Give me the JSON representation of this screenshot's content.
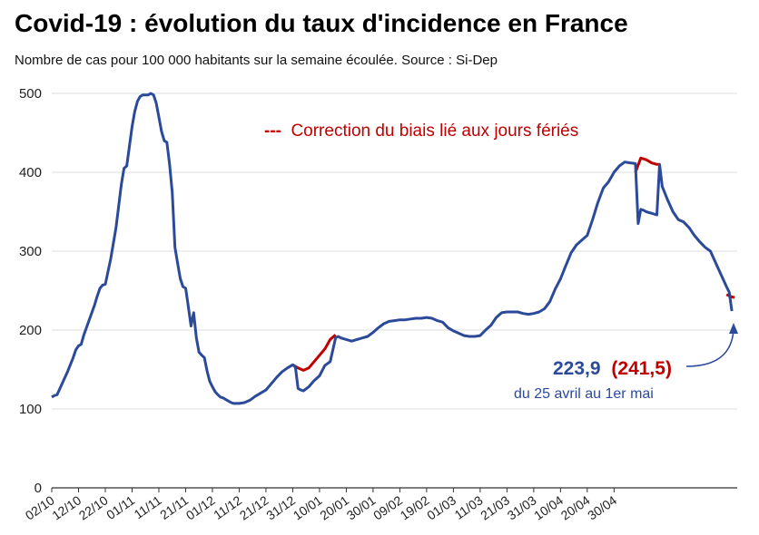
{
  "chart_data": {
    "type": "line",
    "title": "Covid-19 : évolution du taux d'incidence en France",
    "subtitle": "Nombre de cas pour 100 000 habitants sur la semaine écoulée. Source : Si-Dep",
    "ylim": [
      0,
      500
    ],
    "yticks": [
      0,
      100,
      200,
      300,
      400,
      500
    ],
    "grid": true,
    "x_tick_labels": [
      "02/10",
      "12/10",
      "22/10",
      "01/11",
      "11/11",
      "21/11",
      "01/12",
      "11/12",
      "21/12",
      "31/12",
      "10/01",
      "20/01",
      "30/01",
      "09/02",
      "19/02",
      "01/03",
      "11/03",
      "21/03",
      "31/03",
      "10/04",
      "20/04",
      "30/04"
    ],
    "x_unit": "days since 02/10",
    "series": [
      {
        "name": "Taux d'incidence",
        "color": "#2b4a9a",
        "points": [
          [
            0,
            115
          ],
          [
            1,
            117
          ],
          [
            2,
            118
          ],
          [
            4,
            133
          ],
          [
            6,
            148
          ],
          [
            8,
            165
          ],
          [
            9,
            175
          ],
          [
            10,
            180
          ],
          [
            11,
            182
          ],
          [
            12,
            194
          ],
          [
            14,
            213
          ],
          [
            16,
            232
          ],
          [
            17,
            243
          ],
          [
            18,
            253
          ],
          [
            19,
            257
          ],
          [
            20,
            258
          ],
          [
            22,
            290
          ],
          [
            24,
            330
          ],
          [
            26,
            385
          ],
          [
            27,
            405
          ],
          [
            28,
            408
          ],
          [
            30,
            458
          ],
          [
            31,
            477
          ],
          [
            32,
            490
          ],
          [
            33,
            496
          ],
          [
            34,
            498
          ],
          [
            35,
            498
          ],
          [
            36,
            498
          ],
          [
            37,
            500
          ],
          [
            38,
            498
          ],
          [
            39,
            488
          ],
          [
            40,
            470
          ],
          [
            41,
            452
          ],
          [
            42,
            440
          ],
          [
            43,
            438
          ],
          [
            44,
            410
          ],
          [
            45,
            375
          ],
          [
            46,
            305
          ],
          [
            47,
            285
          ],
          [
            48,
            265
          ],
          [
            49,
            255
          ],
          [
            50,
            253
          ],
          [
            51,
            230
          ],
          [
            52,
            205
          ],
          [
            53,
            222
          ],
          [
            54,
            190
          ],
          [
            55,
            172
          ],
          [
            56,
            168
          ],
          [
            57,
            165
          ],
          [
            58,
            148
          ],
          [
            59,
            135
          ],
          [
            60,
            128
          ],
          [
            61,
            122
          ],
          [
            62,
            118
          ],
          [
            63,
            115
          ],
          [
            64,
            114
          ],
          [
            65,
            112
          ],
          [
            66,
            110
          ],
          [
            67,
            108
          ],
          [
            68,
            107
          ],
          [
            70,
            107
          ],
          [
            72,
            108
          ],
          [
            74,
            111
          ],
          [
            76,
            116
          ],
          [
            78,
            120
          ],
          [
            80,
            124
          ],
          [
            82,
            132
          ],
          [
            84,
            140
          ],
          [
            86,
            147
          ],
          [
            88,
            152
          ],
          [
            90,
            156
          ],
          [
            91,
            153
          ],
          [
            92,
            126
          ],
          [
            93,
            124
          ],
          [
            94,
            123
          ],
          [
            96,
            128
          ],
          [
            98,
            136
          ],
          [
            100,
            142
          ],
          [
            102,
            155
          ],
          [
            104,
            160
          ],
          [
            106,
            190
          ],
          [
            107,
            192
          ],
          [
            108,
            190
          ],
          [
            110,
            188
          ],
          [
            112,
            186
          ],
          [
            114,
            188
          ],
          [
            116,
            190
          ],
          [
            118,
            192
          ],
          [
            120,
            197
          ],
          [
            122,
            203
          ],
          [
            124,
            208
          ],
          [
            126,
            211
          ],
          [
            128,
            212
          ],
          [
            130,
            213
          ],
          [
            132,
            213
          ],
          [
            134,
            214
          ],
          [
            136,
            215
          ],
          [
            138,
            215
          ],
          [
            140,
            216
          ],
          [
            142,
            215
          ],
          [
            144,
            212
          ],
          [
            146,
            210
          ],
          [
            148,
            203
          ],
          [
            150,
            199
          ],
          [
            152,
            196
          ],
          [
            154,
            193
          ],
          [
            156,
            192
          ],
          [
            158,
            192
          ],
          [
            160,
            193
          ],
          [
            162,
            200
          ],
          [
            164,
            206
          ],
          [
            166,
            216
          ],
          [
            168,
            222
          ],
          [
            170,
            223
          ],
          [
            172,
            223
          ],
          [
            174,
            223
          ],
          [
            176,
            221
          ],
          [
            178,
            220
          ],
          [
            180,
            221
          ],
          [
            182,
            223
          ],
          [
            184,
            227
          ],
          [
            186,
            236
          ],
          [
            188,
            252
          ],
          [
            190,
            265
          ],
          [
            192,
            282
          ],
          [
            194,
            298
          ],
          [
            196,
            308
          ],
          [
            198,
            314
          ],
          [
            200,
            320
          ],
          [
            202,
            340
          ],
          [
            204,
            362
          ],
          [
            206,
            380
          ],
          [
            208,
            388
          ],
          [
            210,
            400
          ],
          [
            212,
            408
          ],
          [
            214,
            413
          ],
          [
            216,
            412
          ],
          [
            218,
            411
          ],
          [
            219,
            335
          ],
          [
            220,
            353
          ],
          [
            221,
            352
          ],
          [
            222,
            350
          ],
          [
            224,
            348
          ],
          [
            226,
            346
          ],
          [
            227,
            410
          ],
          [
            228,
            382
          ],
          [
            230,
            365
          ],
          [
            232,
            350
          ],
          [
            234,
            340
          ],
          [
            236,
            337
          ],
          [
            238,
            330
          ],
          [
            240,
            320
          ],
          [
            242,
            312
          ],
          [
            244,
            305
          ],
          [
            246,
            300
          ],
          [
            248,
            285
          ],
          [
            250,
            270
          ],
          [
            252,
            255
          ],
          [
            253,
            248
          ],
          [
            254,
            224
          ]
        ]
      },
      {
        "name": "Correction du biais lié aux jours fériés",
        "color": "#c00000",
        "dashed_legend": true,
        "segments": [
          [
            [
              90,
              156
            ],
            [
              92,
              152
            ],
            [
              94,
              149
            ],
            [
              96,
              152
            ],
            [
              98,
              160
            ],
            [
              100,
              168
            ],
            [
              102,
              176
            ],
            [
              104,
              188
            ],
            [
              106,
              194
            ]
          ],
          [
            [
              218,
              400
            ],
            [
              220,
              418
            ],
            [
              222,
              416
            ],
            [
              224,
              412
            ],
            [
              226,
              410
            ],
            [
              227,
              410
            ]
          ],
          [
            [
              252,
              245
            ],
            [
              254,
              242
            ],
            [
              255,
              241.5
            ]
          ]
        ]
      }
    ],
    "legend": {
      "dash": "---",
      "text": "Correction du biais lié aux jours fériés"
    },
    "annotation": {
      "value_blue": "223,9",
      "value_red": "(241,5)",
      "subtext": "du 25 avril au 1er mai"
    }
  }
}
